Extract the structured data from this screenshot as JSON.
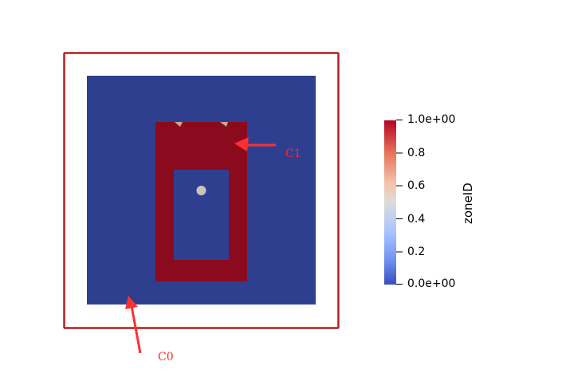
{
  "scene": {
    "outer_frame_color": "#b21f24",
    "outer_gap_color": "#ffffff",
    "domain_color": "#2f3f8f",
    "zone1_color": "#8b0a1d",
    "particle_color": "#c9c3bd",
    "notch_color": "#c8a890"
  },
  "annotations": {
    "arrow_color": "#ff3030",
    "c1_label": "C1",
    "c0_label": "C0"
  },
  "colorbar": {
    "title": "zoneID",
    "ticks": [
      "1.0e+00",
      "0.8",
      "0.6",
      "0.4",
      "0.2",
      "0.0e+00"
    ],
    "gradient_colors": [
      "#b40426",
      "#e7745b",
      "#f3c2a9",
      "#dddcdc",
      "#a8c5fe",
      "#6f92f3",
      "#3b4cc0"
    ]
  }
}
